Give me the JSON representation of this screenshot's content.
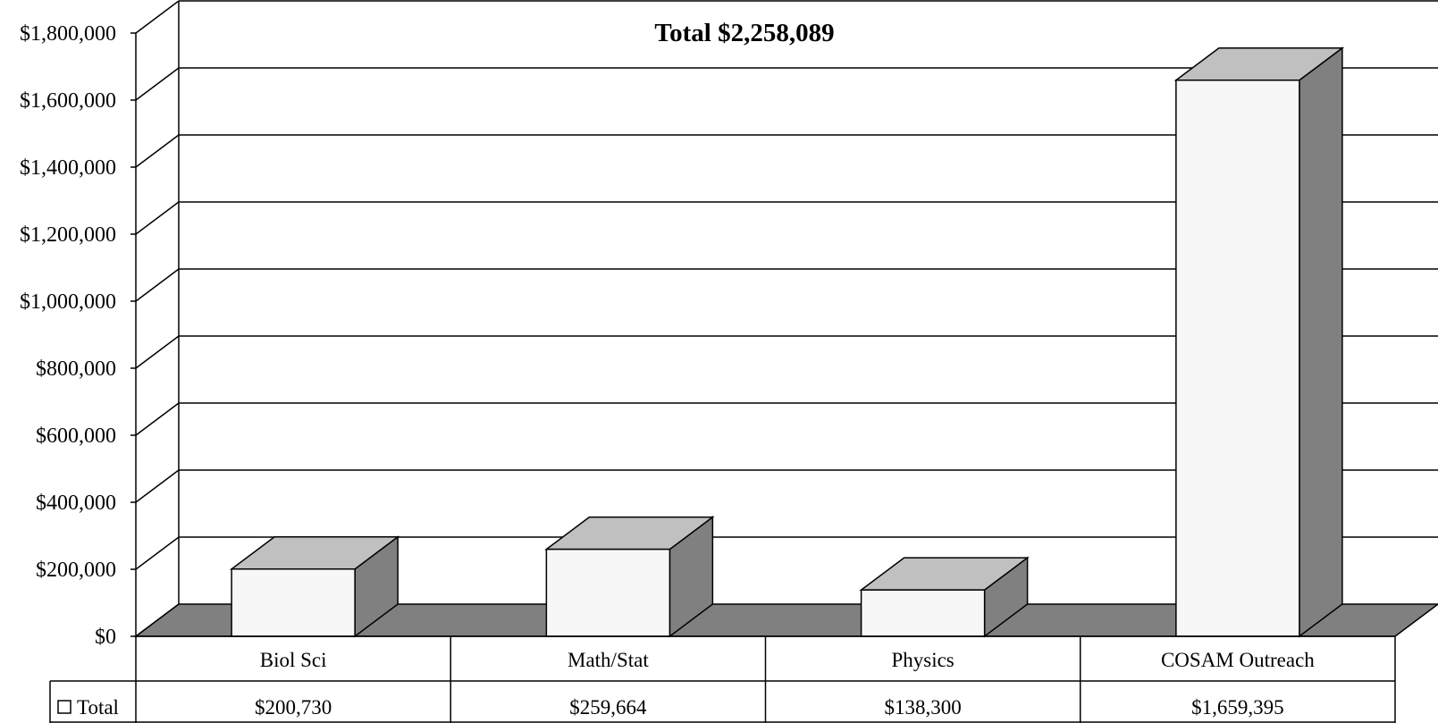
{
  "chart_data": {
    "type": "bar",
    "title": "Total $2,258,089",
    "categories": [
      "Biol Sci",
      "Math/Stat",
      "Physics",
      "COSAM  Outreach"
    ],
    "series": [
      {
        "name": "Total",
        "values": [
          200730,
          259664,
          138300,
          1659395
        ],
        "value_labels": [
          "$200,730",
          "$259,664",
          "$138,300",
          "$1,659,395"
        ]
      }
    ],
    "ylim": [
      0,
      1800000
    ],
    "y_ticks": [
      0,
      200000,
      400000,
      600000,
      800000,
      1000000,
      1200000,
      1400000,
      1600000,
      1800000
    ],
    "y_tick_labels": [
      "$0",
      "$200,000",
      "$400,000",
      "$600,000",
      "$800,000",
      "$1,000,000",
      "$1,200,000",
      "$1,400,000",
      "$1,600,000",
      "$1,800,000"
    ],
    "grid": true,
    "style": "3d-column with data table",
    "colors": {
      "bar_front": "#f7f7f7",
      "bar_top": "#c0c0c0",
      "bar_side": "#808080",
      "floor": "#808080",
      "lines": "#000000"
    }
  }
}
